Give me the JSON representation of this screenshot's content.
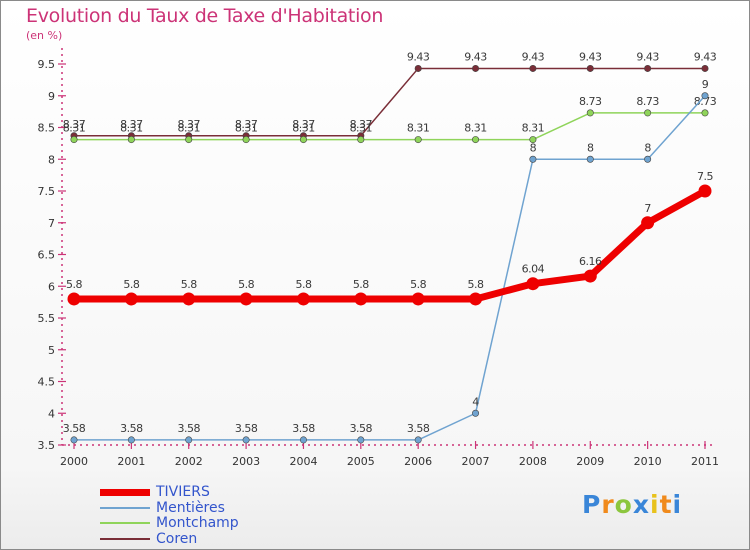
{
  "chart_data": {
    "type": "line",
    "title": "Evolution du Taux de Taxe d'Habitation",
    "subtitle": "(en %)",
    "x": [
      "2000",
      "2001",
      "2002",
      "2003",
      "2004",
      "2005",
      "2006",
      "2007",
      "2008",
      "2009",
      "2010",
      "2011"
    ],
    "ylim": [
      3.5,
      9.5
    ],
    "yticks": [
      "3.5",
      "4",
      "4.5",
      "5",
      "5.5",
      "6",
      "6.5",
      "7",
      "7.5",
      "8",
      "8.5",
      "9",
      "9.5"
    ],
    "grid": false,
    "legend_position": "bottom-left",
    "series": [
      {
        "name": "Coren",
        "color": "#7a2e38",
        "values": [
          8.37,
          8.37,
          8.37,
          8.37,
          8.37,
          8.37,
          9.43,
          9.43,
          9.43,
          9.43,
          9.43,
          9.43
        ],
        "labels": [
          "8.37",
          "8.37",
          "8.37",
          "8.37",
          "8.37",
          "8.37",
          "9.43",
          "9.43",
          "9.43",
          "9.43",
          "9.43",
          "9.43"
        ]
      },
      {
        "name": "Montchamp",
        "color": "#8fd45a",
        "values": [
          8.31,
          8.31,
          8.31,
          8.31,
          8.31,
          8.31,
          8.31,
          8.31,
          8.31,
          8.73,
          8.73,
          8.73
        ],
        "labels": [
          "8.31",
          "8.31",
          "8.31",
          "8.31",
          "8.31",
          "8.31",
          "8.31",
          "8.31",
          "8.31",
          "8.73",
          "8.73",
          "8.73"
        ]
      },
      {
        "name": "Mentières",
        "color": "#6fa3d0",
        "values": [
          3.58,
          3.58,
          3.58,
          3.58,
          3.58,
          3.58,
          3.58,
          4,
          8,
          8,
          8,
          9
        ],
        "labels": [
          "3.58",
          "3.58",
          "3.58",
          "3.58",
          "3.58",
          "3.58",
          "3.58",
          "4",
          "8",
          "8",
          "8",
          "9"
        ]
      },
      {
        "name": "TIVIERS",
        "color": "#ee0000",
        "values": [
          5.8,
          5.8,
          5.8,
          5.8,
          5.8,
          5.8,
          5.8,
          5.8,
          6.04,
          6.16,
          7,
          7.5
        ],
        "labels": [
          "5.8",
          "5.8",
          "5.8",
          "5.8",
          "5.8",
          "5.8",
          "5.8",
          "5.8",
          "6.04",
          "6.16",
          "7",
          "7.5"
        ]
      }
    ],
    "legend": [
      "TIVIERS",
      "Mentières",
      "Montchamp",
      "Coren"
    ]
  },
  "logo": {
    "letters": [
      "P",
      "r",
      "o",
      "x",
      "i",
      "t",
      "i"
    ],
    "colors": [
      "#3a86d8",
      "#f08a1c",
      "#8cc63e",
      "#3a86d8",
      "#e8c21c",
      "#f08a1c",
      "#3a86d8"
    ]
  }
}
